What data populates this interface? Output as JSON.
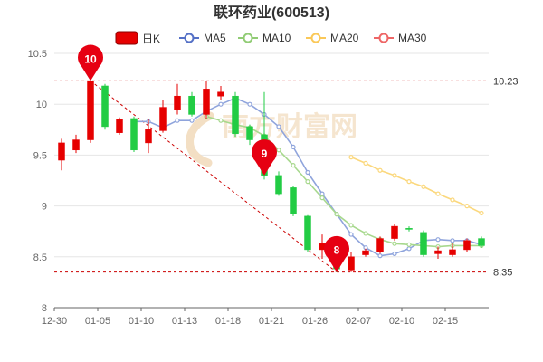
{
  "chart_data": {
    "type": "candlestick",
    "title": "联环药业(600513)",
    "legend": [
      {
        "name": "日K",
        "type": "candle"
      },
      {
        "name": "MA5",
        "color": "#5470c6"
      },
      {
        "name": "MA10",
        "color": "#91cc75"
      },
      {
        "name": "MA20",
        "color": "#fac858"
      },
      {
        "name": "MA30",
        "color": "#ee6666"
      }
    ],
    "colors": {
      "up": "#e60000",
      "down": "#22cc44",
      "ma5": "#8fa4dc",
      "ma10": "#a7d88d",
      "ma20": "#fbd87d",
      "level": "#cc0000"
    },
    "x_tick_labels": [
      "12-30",
      "01-05",
      "01-10",
      "01-13",
      "01-18",
      "01-21",
      "01-26",
      "02-07",
      "02-10",
      "02-15"
    ],
    "ylim": [
      8,
      10.5
    ],
    "y_ticks": [
      8,
      8.5,
      9,
      9.5,
      10,
      10.5
    ],
    "candles": [
      {
        "o": 9.45,
        "c": 9.62,
        "h": 9.66,
        "l": 9.35
      },
      {
        "o": 9.55,
        "c": 9.65,
        "h": 9.7,
        "l": 9.52
      },
      {
        "o": 9.65,
        "c": 10.23,
        "h": 10.23,
        "l": 9.62
      },
      {
        "o": 10.18,
        "c": 9.78,
        "h": 10.2,
        "l": 9.75
      },
      {
        "o": 9.72,
        "c": 9.85,
        "h": 9.87,
        "l": 9.7
      },
      {
        "o": 9.86,
        "c": 9.55,
        "h": 9.88,
        "l": 9.53
      },
      {
        "o": 9.62,
        "c": 9.75,
        "h": 9.85,
        "l": 9.52
      },
      {
        "o": 9.74,
        "c": 9.97,
        "h": 10.04,
        "l": 9.72
      },
      {
        "o": 9.95,
        "c": 10.08,
        "h": 10.2,
        "l": 9.9
      },
      {
        "o": 10.08,
        "c": 9.9,
        "h": 10.12,
        "l": 9.88
      },
      {
        "o": 9.9,
        "c": 10.15,
        "h": 10.23,
        "l": 9.86
      },
      {
        "o": 10.08,
        "c": 10.12,
        "h": 10.18,
        "l": 10.04
      },
      {
        "o": 10.08,
        "c": 9.71,
        "h": 10.12,
        "l": 9.68
      },
      {
        "o": 9.78,
        "c": 9.65,
        "h": 9.8,
        "l": 9.6
      },
      {
        "o": 9.7,
        "c": 9.3,
        "h": 10.12,
        "l": 9.26
      },
      {
        "o": 9.3,
        "c": 9.12,
        "h": 9.34,
        "l": 9.1
      },
      {
        "o": 9.18,
        "c": 8.92,
        "h": 9.2,
        "l": 8.9
      },
      {
        "o": 8.9,
        "c": 8.57,
        "h": 8.91,
        "l": 8.55
      },
      {
        "o": 8.57,
        "c": 8.63,
        "h": 8.72,
        "l": 8.48
      },
      {
        "o": 8.55,
        "c": 8.38,
        "h": 8.58,
        "l": 8.35
      },
      {
        "o": 8.37,
        "c": 8.5,
        "h": 8.55,
        "l": 8.35
      },
      {
        "o": 8.52,
        "c": 8.56,
        "h": 8.58,
        "l": 8.5
      },
      {
        "o": 8.55,
        "c": 8.68,
        "h": 8.7,
        "l": 8.53
      },
      {
        "o": 8.68,
        "c": 8.8,
        "h": 8.82,
        "l": 8.66
      },
      {
        "o": 8.78,
        "c": 8.77,
        "h": 8.8,
        "l": 8.75
      },
      {
        "o": 8.74,
        "c": 8.52,
        "h": 8.76,
        "l": 8.5
      },
      {
        "o": 8.53,
        "c": 8.56,
        "h": 8.6,
        "l": 8.48
      },
      {
        "o": 8.52,
        "c": 8.57,
        "h": 8.63,
        "l": 8.5
      },
      {
        "o": 8.57,
        "c": 8.66,
        "h": 8.68,
        "l": 8.55
      },
      {
        "o": 8.68,
        "c": 8.61,
        "h": 8.7,
        "l": 8.59
      }
    ],
    "ma_series": [
      {
        "name": "MA5",
        "color": "#8fa4dc",
        "start": 5,
        "values": [
          9.83,
          9.83,
          9.77,
          9.84,
          9.84,
          9.93,
          10.0,
          10.06,
          10.0,
          9.9,
          9.78,
          9.58,
          9.33,
          9.12,
          8.92,
          8.72,
          8.59,
          8.51,
          8.53,
          8.58,
          8.66,
          8.67,
          8.66,
          8.66,
          8.62
        ]
      },
      {
        "name": "MA10",
        "color": "#a7d88d",
        "start": 10,
        "values": [
          9.88,
          9.84,
          9.8,
          9.77,
          9.69,
          9.55,
          9.4,
          9.24,
          9.08,
          8.92,
          8.81,
          8.73,
          8.67,
          8.63,
          8.62,
          8.61,
          8.6,
          8.61,
          8.61,
          8.61
        ]
      },
      {
        "name": "MA20",
        "color": "#fbd87d",
        "start": 20,
        "values": [
          9.48,
          9.42,
          9.35,
          9.3,
          9.24,
          9.19,
          9.12,
          9.06,
          9.0,
          8.93
        ]
      }
    ],
    "levels": [
      {
        "value": 10.23,
        "label": "10.23"
      },
      {
        "value": 8.35,
        "label": "8.35"
      }
    ],
    "markers": [
      {
        "label": "10",
        "index": 2,
        "value": 10.23
      },
      {
        "label": "9",
        "index": 14,
        "value": 9.3
      },
      {
        "label": "8",
        "index": 19,
        "value": 8.35
      }
    ],
    "watermark": "南方财富网"
  }
}
